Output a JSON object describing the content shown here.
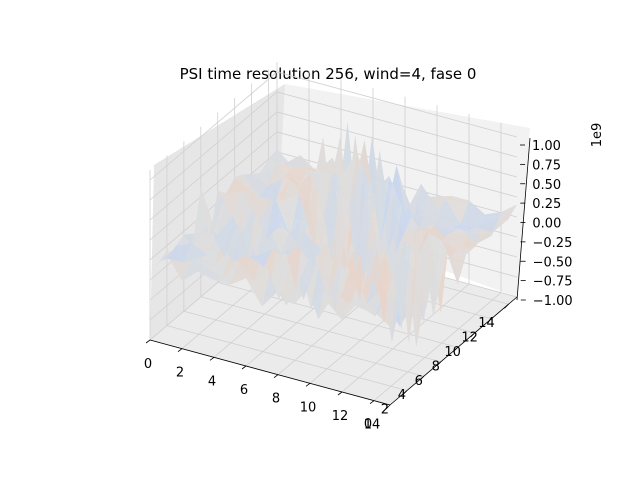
{
  "chart_data": {
    "type": "surface3d",
    "title": "PSI time resolution 256, wind=4, fase 0",
    "x_ticks": [
      "0",
      "2",
      "4",
      "6",
      "8",
      "10",
      "12",
      "14"
    ],
    "y_ticks": [
      "0",
      "2",
      "4",
      "6",
      "8",
      "10",
      "12",
      "14"
    ],
    "z_ticks": [
      "−1.00",
      "−0.75",
      "−0.50",
      "−0.25",
      "0.00",
      "0.25",
      "0.50",
      "0.75",
      "1.00"
    ],
    "z_offset_label": "1e9",
    "xlim": [
      0,
      15
    ],
    "ylim": [
      0,
      15
    ],
    "zlim": [
      -1.0,
      1.0
    ],
    "z_scale": 1000000000,
    "colormap": "coolwarm",
    "grid": true,
    "peaks": [
      {
        "x": 6.5,
        "y": 12.0,
        "amp": 1.1
      },
      {
        "x": 13.0,
        "y": 6.0,
        "amp": 1.0
      },
      {
        "x": 1.5,
        "y": 7.0,
        "amp": 0.35
      },
      {
        "x": 8.0,
        "y": 3.0,
        "amp": 0.45
      }
    ]
  }
}
